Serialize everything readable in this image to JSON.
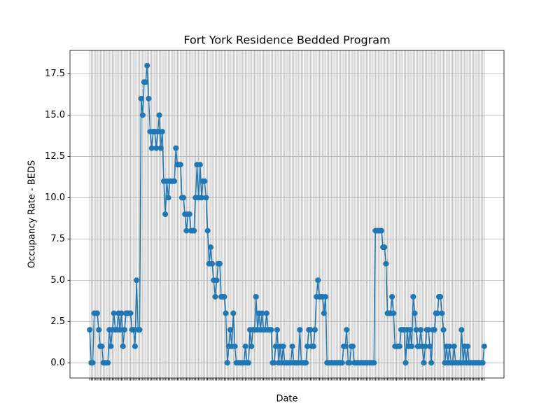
{
  "chart_data": {
    "type": "line",
    "title": "Fort York Residence Bedded Program",
    "x_label": "Date",
    "y_label": "Occupancy Rate - BEDS",
    "color": "#1f77b4",
    "grid": true,
    "categories": [
      null,
      null,
      null,
      null,
      null,
      null,
      null,
      null,
      null,
      null,
      null,
      null,
      null,
      null,
      null,
      null,
      null,
      null,
      null,
      null,
      null,
      null,
      null,
      null,
      null,
      null,
      null,
      null,
      null,
      null,
      null,
      null,
      null,
      null,
      null,
      null,
      null,
      null,
      null,
      null,
      null,
      null,
      null,
      null,
      null,
      null,
      null,
      null,
      null,
      null,
      null,
      null,
      null,
      null,
      null,
      null,
      null,
      null,
      null,
      null,
      null,
      null,
      null,
      null,
      null,
      null,
      null,
      null,
      null,
      null,
      null,
      null,
      null,
      null,
      null,
      null,
      null,
      null,
      null,
      null,
      null,
      null,
      null,
      null,
      null,
      null,
      null,
      null,
      null,
      null,
      null,
      null,
      null,
      null,
      null,
      null,
      null,
      null,
      null,
      null,
      null,
      null,
      null,
      null,
      null,
      null,
      null,
      null,
      null,
      null,
      null,
      null,
      null,
      null,
      null,
      null,
      null,
      null,
      null,
      null,
      null,
      null,
      null,
      null,
      null,
      null,
      null,
      null,
      null,
      null,
      null,
      null,
      null,
      null,
      null,
      null,
      null,
      null,
      null,
      null,
      null,
      null,
      null,
      null,
      null,
      null,
      null,
      null,
      null,
      null,
      null,
      null,
      null,
      null,
      null,
      null,
      null,
      null,
      null,
      null,
      null,
      null,
      null,
      null,
      null,
      null,
      null,
      null,
      null,
      null,
      null,
      null,
      null,
      null,
      null,
      null,
      null,
      null,
      null,
      null,
      null,
      null,
      null,
      null,
      null,
      null,
      null,
      null,
      null,
      null,
      null,
      null,
      null,
      null,
      null,
      null,
      null,
      null,
      null,
      null,
      null,
      null,
      null,
      null,
      null,
      null,
      null,
      null,
      null,
      null,
      null,
      null,
      null,
      null,
      null,
      null,
      null,
      null,
      null,
      null,
      null,
      null,
      null,
      null,
      null,
      null,
      null,
      null,
      null,
      null,
      null,
      null,
      null,
      null,
      null,
      null,
      null,
      null,
      null,
      null,
      null,
      null,
      null,
      null,
      null,
      null,
      null,
      null,
      null,
      null,
      null,
      null,
      null,
      null,
      null,
      null,
      null,
      null,
      null,
      null,
      null,
      null
    ],
    "values": [
      2,
      0,
      0,
      3,
      3,
      3,
      2,
      1,
      1,
      0,
      0,
      0,
      0,
      2,
      1,
      2,
      3,
      2,
      2,
      3,
      2,
      3,
      1,
      2,
      3,
      3,
      3,
      3,
      2,
      2,
      1,
      5,
      2,
      2,
      16,
      15,
      17,
      17,
      18,
      16,
      14,
      13,
      14,
      14,
      13,
      14,
      15,
      13,
      14,
      11,
      9,
      11,
      10,
      11,
      11,
      11,
      11,
      13,
      12,
      12,
      12,
      10,
      10,
      9,
      8,
      9,
      9,
      8,
      8,
      8,
      10,
      12,
      10,
      12,
      10,
      11,
      11,
      10,
      8,
      6,
      7,
      6,
      5,
      4,
      5,
      6,
      6,
      4,
      4,
      4,
      3,
      0,
      1,
      2,
      1,
      3,
      1,
      0,
      0,
      0,
      0,
      0,
      0,
      1,
      0,
      0,
      2,
      1,
      2,
      2,
      4,
      2,
      3,
      2,
      3,
      2,
      2,
      3,
      2,
      2,
      2,
      0,
      0,
      1,
      2,
      0,
      1,
      0,
      1,
      0,
      0,
      0,
      0,
      0,
      1,
      0,
      0,
      0,
      0,
      2,
      0,
      0,
      0,
      0,
      1,
      2,
      2,
      1,
      1,
      2,
      4,
      5,
      4,
      4,
      4,
      3,
      4,
      0,
      0,
      0,
      0,
      0,
      0,
      0,
      0,
      0,
      0,
      0,
      1,
      1,
      2,
      0,
      0,
      1,
      1,
      0,
      0,
      0,
      0,
      0,
      0,
      0,
      0,
      0,
      0,
      0,
      0,
      0,
      0,
      8,
      8,
      8,
      8,
      8,
      7,
      7,
      6,
      3,
      3,
      3,
      4,
      3,
      1,
      1,
      1,
      1,
      2,
      2,
      2,
      0,
      2,
      1,
      2,
      1,
      4,
      3,
      2,
      1,
      1,
      2,
      1,
      0,
      1,
      2,
      2,
      1,
      0,
      2,
      2,
      3,
      3,
      4,
      4,
      3,
      2,
      0,
      1,
      0,
      1,
      0,
      0,
      1,
      0,
      0,
      0,
      0,
      2,
      0,
      1,
      0,
      1,
      0,
      0,
      0,
      0,
      0,
      0,
      0,
      0,
      0,
      0,
      1
    ],
    "ylim": [
      -0.92,
      18.92
    ],
    "yticks": [
      {
        "value": 0,
        "label": "0.0"
      },
      2.5,
      {
        "value": 5,
        "label": "5.0"
      },
      7.5,
      {
        "value": 10,
        "label": "10.0"
      },
      12.5,
      {
        "value": 15,
        "label": "15.0"
      },
      17.5
    ]
  }
}
